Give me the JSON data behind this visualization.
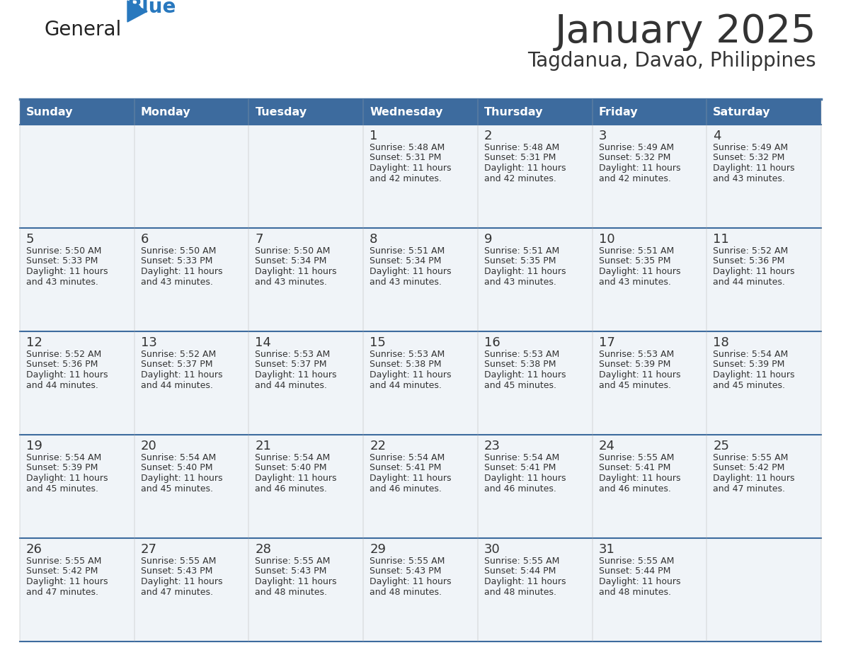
{
  "title": "January 2025",
  "subtitle": "Tagdanua, Davao, Philippines",
  "header_bg": "#3d6b9e",
  "header_text_color": "#ffffff",
  "cell_bg": "#f0f4f8",
  "border_color": "#3d6b9e",
  "text_color": "#333333",
  "days_of_week": [
    "Sunday",
    "Monday",
    "Tuesday",
    "Wednesday",
    "Thursday",
    "Friday",
    "Saturday"
  ],
  "calendar": [
    [
      {
        "day": "",
        "sunrise": "",
        "sunset": "",
        "daylight": ""
      },
      {
        "day": "",
        "sunrise": "",
        "sunset": "",
        "daylight": ""
      },
      {
        "day": "",
        "sunrise": "",
        "sunset": "",
        "daylight": ""
      },
      {
        "day": "1",
        "sunrise": "5:48 AM",
        "sunset": "5:31 PM",
        "daylight": "11 hours and 42 minutes."
      },
      {
        "day": "2",
        "sunrise": "5:48 AM",
        "sunset": "5:31 PM",
        "daylight": "11 hours and 42 minutes."
      },
      {
        "day": "3",
        "sunrise": "5:49 AM",
        "sunset": "5:32 PM",
        "daylight": "11 hours and 42 minutes."
      },
      {
        "day": "4",
        "sunrise": "5:49 AM",
        "sunset": "5:32 PM",
        "daylight": "11 hours and 43 minutes."
      }
    ],
    [
      {
        "day": "5",
        "sunrise": "5:50 AM",
        "sunset": "5:33 PM",
        "daylight": "11 hours and 43 minutes."
      },
      {
        "day": "6",
        "sunrise": "5:50 AM",
        "sunset": "5:33 PM",
        "daylight": "11 hours and 43 minutes."
      },
      {
        "day": "7",
        "sunrise": "5:50 AM",
        "sunset": "5:34 PM",
        "daylight": "11 hours and 43 minutes."
      },
      {
        "day": "8",
        "sunrise": "5:51 AM",
        "sunset": "5:34 PM",
        "daylight": "11 hours and 43 minutes."
      },
      {
        "day": "9",
        "sunrise": "5:51 AM",
        "sunset": "5:35 PM",
        "daylight": "11 hours and 43 minutes."
      },
      {
        "day": "10",
        "sunrise": "5:51 AM",
        "sunset": "5:35 PM",
        "daylight": "11 hours and 43 minutes."
      },
      {
        "day": "11",
        "sunrise": "5:52 AM",
        "sunset": "5:36 PM",
        "daylight": "11 hours and 44 minutes."
      }
    ],
    [
      {
        "day": "12",
        "sunrise": "5:52 AM",
        "sunset": "5:36 PM",
        "daylight": "11 hours and 44 minutes."
      },
      {
        "day": "13",
        "sunrise": "5:52 AM",
        "sunset": "5:37 PM",
        "daylight": "11 hours and 44 minutes."
      },
      {
        "day": "14",
        "sunrise": "5:53 AM",
        "sunset": "5:37 PM",
        "daylight": "11 hours and 44 minutes."
      },
      {
        "day": "15",
        "sunrise": "5:53 AM",
        "sunset": "5:38 PM",
        "daylight": "11 hours and 44 minutes."
      },
      {
        "day": "16",
        "sunrise": "5:53 AM",
        "sunset": "5:38 PM",
        "daylight": "11 hours and 45 minutes."
      },
      {
        "day": "17",
        "sunrise": "5:53 AM",
        "sunset": "5:39 PM",
        "daylight": "11 hours and 45 minutes."
      },
      {
        "day": "18",
        "sunrise": "5:54 AM",
        "sunset": "5:39 PM",
        "daylight": "11 hours and 45 minutes."
      }
    ],
    [
      {
        "day": "19",
        "sunrise": "5:54 AM",
        "sunset": "5:39 PM",
        "daylight": "11 hours and 45 minutes."
      },
      {
        "day": "20",
        "sunrise": "5:54 AM",
        "sunset": "5:40 PM",
        "daylight": "11 hours and 45 minutes."
      },
      {
        "day": "21",
        "sunrise": "5:54 AM",
        "sunset": "5:40 PM",
        "daylight": "11 hours and 46 minutes."
      },
      {
        "day": "22",
        "sunrise": "5:54 AM",
        "sunset": "5:41 PM",
        "daylight": "11 hours and 46 minutes."
      },
      {
        "day": "23",
        "sunrise": "5:54 AM",
        "sunset": "5:41 PM",
        "daylight": "11 hours and 46 minutes."
      },
      {
        "day": "24",
        "sunrise": "5:55 AM",
        "sunset": "5:41 PM",
        "daylight": "11 hours and 46 minutes."
      },
      {
        "day": "25",
        "sunrise": "5:55 AM",
        "sunset": "5:42 PM",
        "daylight": "11 hours and 47 minutes."
      }
    ],
    [
      {
        "day": "26",
        "sunrise": "5:55 AM",
        "sunset": "5:42 PM",
        "daylight": "11 hours and 47 minutes."
      },
      {
        "day": "27",
        "sunrise": "5:55 AM",
        "sunset": "5:43 PM",
        "daylight": "11 hours and 47 minutes."
      },
      {
        "day": "28",
        "sunrise": "5:55 AM",
        "sunset": "5:43 PM",
        "daylight": "11 hours and 48 minutes."
      },
      {
        "day": "29",
        "sunrise": "5:55 AM",
        "sunset": "5:43 PM",
        "daylight": "11 hours and 48 minutes."
      },
      {
        "day": "30",
        "sunrise": "5:55 AM",
        "sunset": "5:44 PM",
        "daylight": "11 hours and 48 minutes."
      },
      {
        "day": "31",
        "sunrise": "5:55 AM",
        "sunset": "5:44 PM",
        "daylight": "11 hours and 48 minutes."
      },
      {
        "day": "",
        "sunrise": "",
        "sunset": "",
        "daylight": ""
      }
    ]
  ],
  "logo_general_color": "#222222",
  "logo_blue_color": "#2878be",
  "logo_triangle_color": "#2878be",
  "fig_width": 11.88,
  "fig_height": 9.18,
  "dpi": 100
}
